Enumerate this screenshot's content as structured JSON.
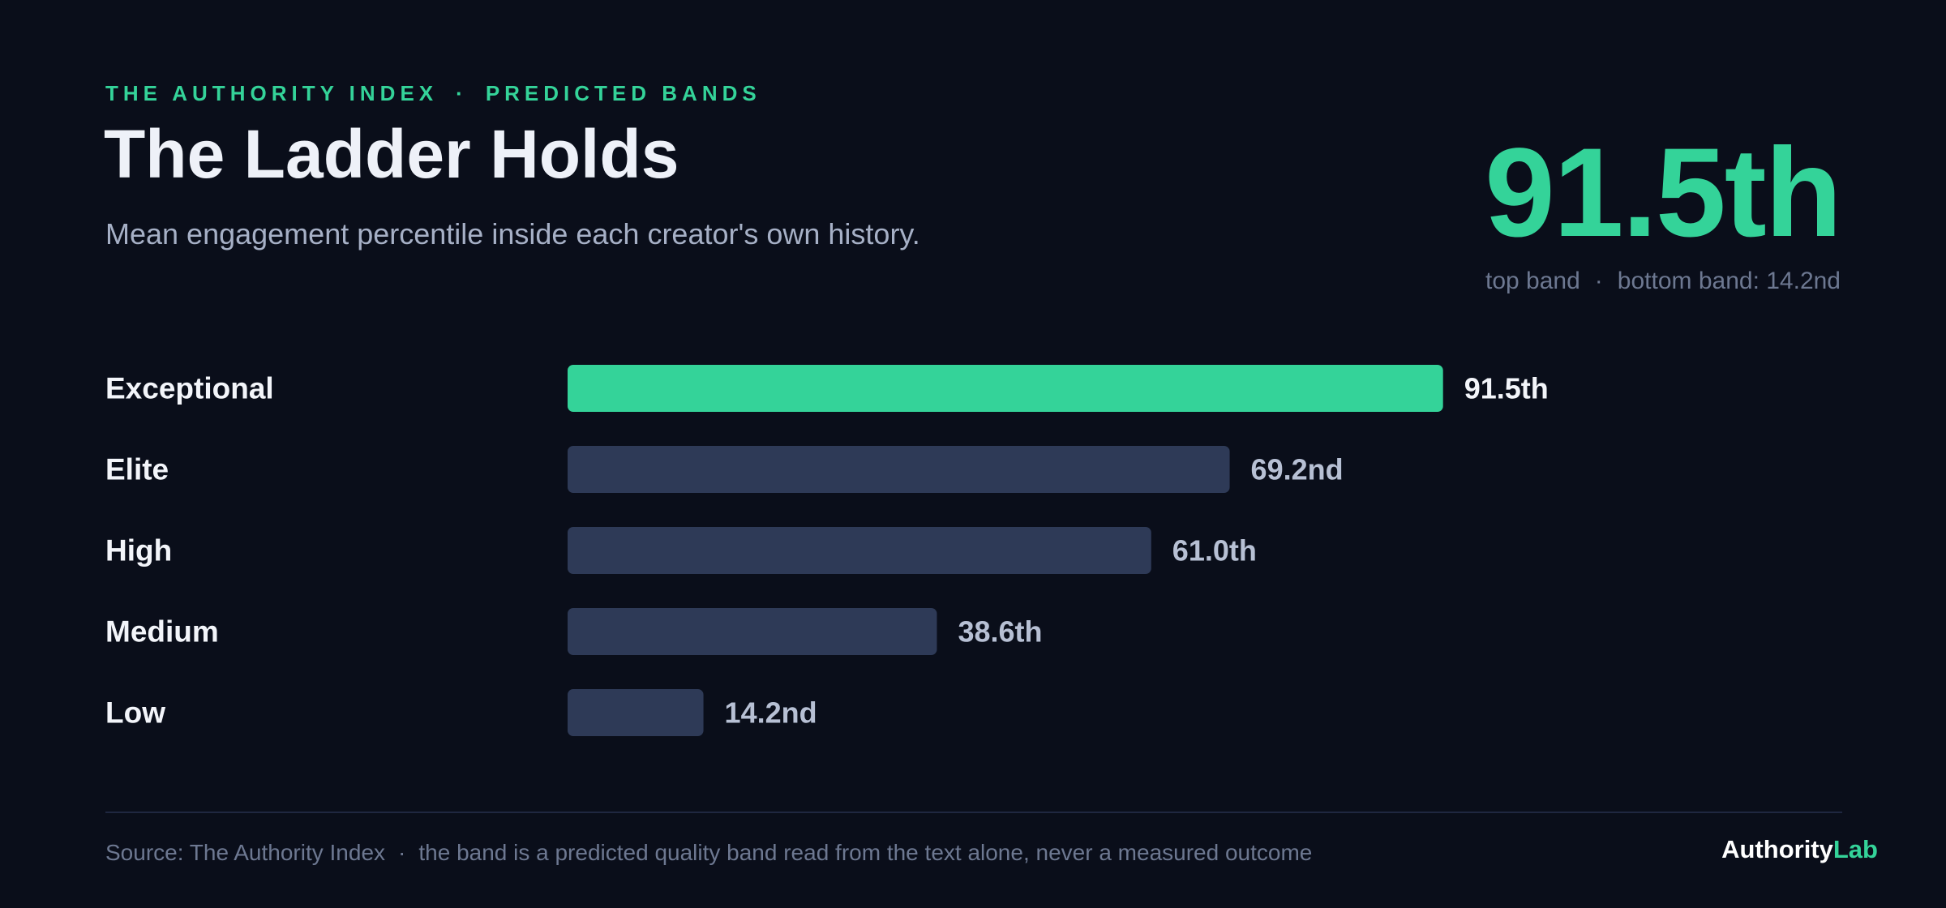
{
  "header": {
    "kicker_left": "THE AUTHORITY INDEX",
    "kicker_sep": "·",
    "kicker_right": "PREDICTED BANDS",
    "title": "The Ladder Holds",
    "subtitle": "Mean engagement percentile inside each creator's own history."
  },
  "kpi": {
    "value": "91.5th",
    "label_left": "top band",
    "sep": "·",
    "label_right": "bottom band: 14.2nd"
  },
  "colors": {
    "accent": "#34d399",
    "bar_default": "#2e3a57",
    "background": "#0a0e1a",
    "category_label": "#f3f5fa",
    "value_label_highlight": "#f3f5fa",
    "value_label_default": "#b7c0d4"
  },
  "chart_data": {
    "type": "bar",
    "orientation": "horizontal",
    "categories": [
      "Exceptional",
      "Elite",
      "High",
      "Medium",
      "Low"
    ],
    "values": [
      91.5,
      69.2,
      61.0,
      38.6,
      14.2
    ],
    "value_labels": [
      "91.5th",
      "69.2nd",
      "61.0th",
      "38.6th",
      "14.2nd"
    ],
    "highlight_index": 0,
    "xlim": [
      0,
      100
    ],
    "grid": false,
    "legend": "none"
  },
  "footer": {
    "source": "Source: The Authority Index",
    "sep": "·",
    "note": "the band is a predicted quality band read from the text alone, never a measured outcome",
    "brand_a": "Authority",
    "brand_b": "Lab"
  }
}
